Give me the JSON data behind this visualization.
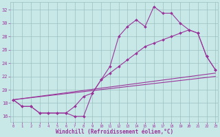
{
  "background_color": "#c8e8e8",
  "grid_color": "#9bbfbf",
  "line_color": "#993399",
  "xlabel": "Windchill (Refroidissement éolien,°C)",
  "yticks": [
    16,
    18,
    20,
    22,
    24,
    26,
    28,
    30,
    32
  ],
  "xticks": [
    0,
    1,
    2,
    3,
    4,
    5,
    6,
    7,
    8,
    9,
    10,
    11,
    12,
    13,
    14,
    15,
    16,
    17,
    18,
    19,
    20,
    21,
    22,
    23
  ],
  "xlim": [
    -0.3,
    23.3
  ],
  "ylim": [
    15.2,
    33.2
  ],
  "line1_x": [
    0,
    1,
    2,
    3,
    4,
    5,
    6,
    7,
    8,
    9,
    10,
    11,
    12,
    13,
    14,
    15,
    16,
    17,
    18,
    19,
    20,
    21,
    22,
    23
  ],
  "line1_y": [
    18.5,
    17.5,
    17.5,
    16.5,
    16.5,
    16.5,
    16.5,
    16.0,
    16.0,
    19.5,
    21.5,
    23.5,
    28.0,
    29.5,
    30.5,
    29.5,
    32.5,
    31.5,
    31.5,
    30.0,
    29.0,
    28.5,
    25.0,
    23.0
  ],
  "line2_x": [
    0,
    1,
    2,
    3,
    4,
    5,
    6,
    7,
    8,
    9,
    10,
    11,
    12,
    13,
    14,
    15,
    16,
    17,
    18,
    19,
    20,
    21,
    22,
    23
  ],
  "line2_y": [
    18.5,
    17.5,
    17.5,
    16.5,
    16.5,
    16.5,
    16.5,
    17.5,
    19.0,
    19.5,
    21.5,
    22.5,
    23.5,
    24.5,
    25.5,
    26.5,
    27.0,
    27.5,
    28.0,
    28.5,
    29.0,
    28.5,
    25.0,
    23.0
  ],
  "line3_x": [
    0,
    23
  ],
  "line3_y": [
    18.5,
    22.5
  ],
  "line4_x": [
    0,
    23
  ],
  "line4_y": [
    18.5,
    22.0
  ]
}
